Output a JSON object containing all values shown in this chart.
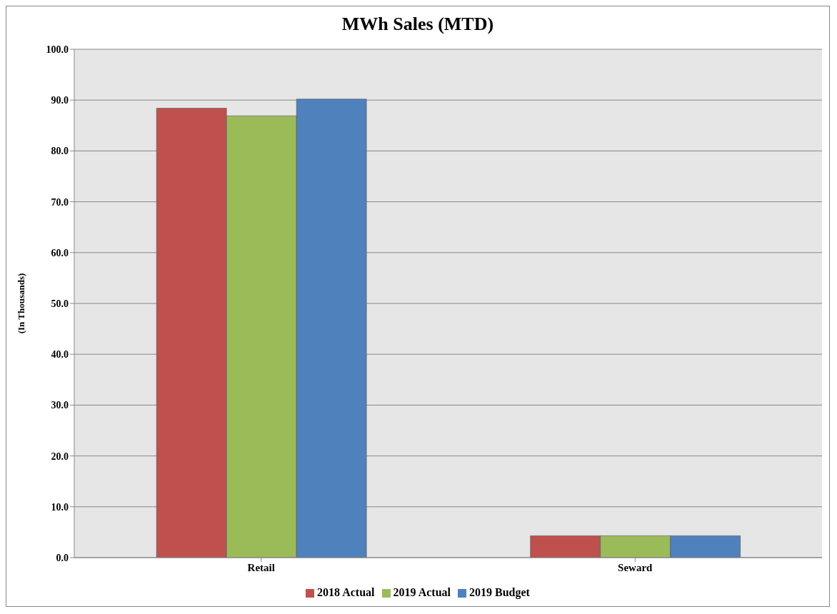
{
  "chart_data": {
    "type": "bar",
    "title": "MWh Sales (MTD)",
    "ylabel": "(In Thousands)",
    "categories": [
      "Retail",
      "Seward"
    ],
    "series": [
      {
        "name": "2018 Actual",
        "color": "#c0504d",
        "values": [
          88.4,
          4.3
        ]
      },
      {
        "name": "2019 Actual",
        "color": "#9bbb59",
        "values": [
          86.9,
          4.3
        ]
      },
      {
        "name": "2019 Budget",
        "color": "#4f81bd",
        "values": [
          90.2,
          4.3
        ]
      }
    ],
    "ylim": [
      0,
      100
    ],
    "yticks": [
      {
        "value": 0,
        "label": "0.0"
      },
      {
        "value": 10,
        "label": "10.0"
      },
      {
        "value": 20,
        "label": "20.0"
      },
      {
        "value": 30,
        "label": "30.0"
      },
      {
        "value": 40,
        "label": "40.0"
      },
      {
        "value": 50,
        "label": "50.0"
      },
      {
        "value": 60,
        "label": "60.0"
      },
      {
        "value": 70,
        "label": "70.0"
      },
      {
        "value": 80,
        "label": "80.0"
      },
      {
        "value": 90,
        "label": "90.0"
      },
      {
        "value": 100,
        "label": "100.0"
      }
    ],
    "grid": "y",
    "legend": "bottom"
  }
}
